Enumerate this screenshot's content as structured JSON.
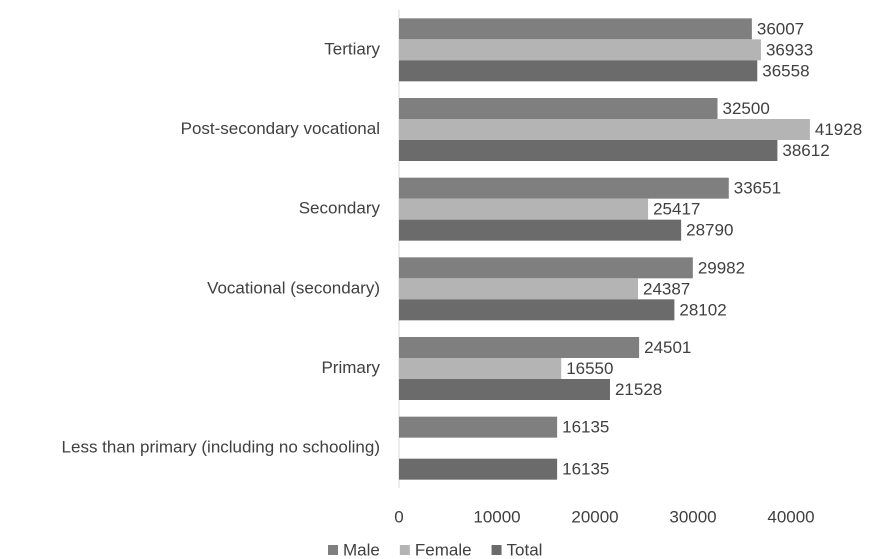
{
  "chart_data": {
    "type": "hbar",
    "categories": [
      "Tertiary",
      "Post-secondary vocational",
      "Secondary",
      "Vocational (secondary)",
      "Primary",
      "Less than primary (including no schooling)"
    ],
    "series": [
      {
        "name": "Male",
        "color": "#7f7f7f",
        "values": [
          36007,
          32500,
          33651,
          29982,
          24501,
          16135
        ]
      },
      {
        "name": "Female",
        "color": "#b4b4b4",
        "values": [
          36933,
          41928,
          25417,
          24387,
          16550,
          null
        ]
      },
      {
        "name": "Total",
        "color": "#6b6b6b",
        "values": [
          36558,
          38612,
          28790,
          28102,
          21528,
          16135
        ]
      }
    ],
    "xlim": [
      0,
      45000
    ],
    "xticks": [
      0,
      10000,
      20000,
      30000,
      40000
    ],
    "legend": "bottom"
  }
}
